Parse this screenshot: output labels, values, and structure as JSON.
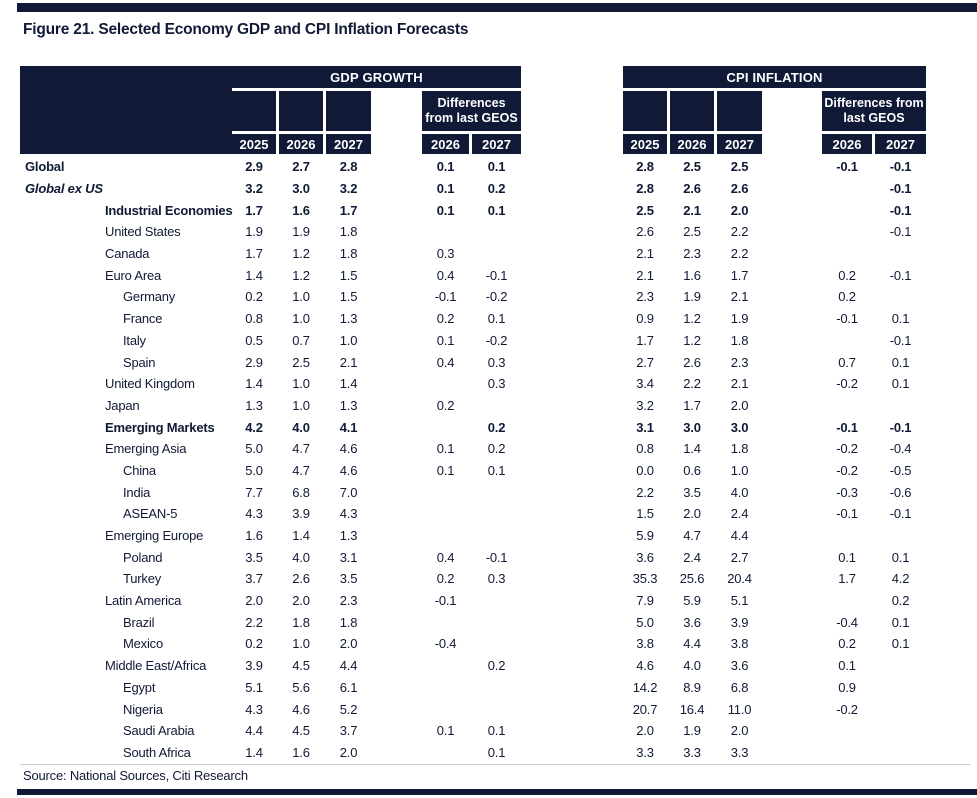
{
  "title": "Figure 21. Selected Economy GDP and CPI Inflation Forecasts",
  "source": "Source: National Sources, Citi Research",
  "colors": {
    "navy": "#101a36",
    "header_text": "#ffffff",
    "body_text": "#101a36",
    "divider": "#c9c9c9"
  },
  "table": {
    "groups": [
      {
        "label": "GDP GROWTH"
      },
      {
        "label": "CPI INFLATION"
      }
    ],
    "diff_header": "Differences from last GEOS",
    "years": [
      "2025",
      "2026",
      "2027"
    ],
    "diff_years": [
      "2026",
      "2027"
    ],
    "rows": [
      {
        "label": "Global",
        "indent": 0,
        "bold": true,
        "italic": false,
        "gdp": [
          "2.9",
          "2.7",
          "2.8"
        ],
        "gdp_diff": [
          "0.1",
          "0.1"
        ],
        "cpi": [
          "2.8",
          "2.5",
          "2.5"
        ],
        "cpi_diff": [
          "-0.1",
          "-0.1"
        ]
      },
      {
        "label": "Global ex US",
        "indent": 0,
        "bold": true,
        "italic": true,
        "gdp": [
          "3.2",
          "3.0",
          "3.2"
        ],
        "gdp_diff": [
          "0.1",
          "0.2"
        ],
        "cpi": [
          "2.8",
          "2.6",
          "2.6"
        ],
        "cpi_diff": [
          "",
          "-0.1"
        ]
      },
      {
        "label": "Industrial Economies",
        "indent": 1,
        "bold": true,
        "italic": false,
        "gdp": [
          "1.7",
          "1.6",
          "1.7"
        ],
        "gdp_diff": [
          "0.1",
          "0.1"
        ],
        "cpi": [
          "2.5",
          "2.1",
          "2.0"
        ],
        "cpi_diff": [
          "",
          "-0.1"
        ]
      },
      {
        "label": "United States",
        "indent": 1,
        "bold": false,
        "italic": false,
        "gdp": [
          "1.9",
          "1.9",
          "1.8"
        ],
        "gdp_diff": [
          "",
          ""
        ],
        "cpi": [
          "2.6",
          "2.5",
          "2.2"
        ],
        "cpi_diff": [
          "",
          "-0.1"
        ]
      },
      {
        "label": "Canada",
        "indent": 1,
        "bold": false,
        "italic": false,
        "gdp": [
          "1.7",
          "1.2",
          "1.8"
        ],
        "gdp_diff": [
          "0.3",
          ""
        ],
        "cpi": [
          "2.1",
          "2.3",
          "2.2"
        ],
        "cpi_diff": [
          "",
          ""
        ]
      },
      {
        "label": "Euro Area",
        "indent": 1,
        "bold": false,
        "italic": false,
        "gdp": [
          "1.4",
          "1.2",
          "1.5"
        ],
        "gdp_diff": [
          "0.4",
          "-0.1"
        ],
        "cpi": [
          "2.1",
          "1.6",
          "1.7"
        ],
        "cpi_diff": [
          "0.2",
          "-0.1"
        ]
      },
      {
        "label": "Germany",
        "indent": 2,
        "bold": false,
        "italic": false,
        "gdp": [
          "0.2",
          "1.0",
          "1.5"
        ],
        "gdp_diff": [
          "-0.1",
          "-0.2"
        ],
        "cpi": [
          "2.3",
          "1.9",
          "2.1"
        ],
        "cpi_diff": [
          "0.2",
          ""
        ]
      },
      {
        "label": "France",
        "indent": 2,
        "bold": false,
        "italic": false,
        "gdp": [
          "0.8",
          "1.0",
          "1.3"
        ],
        "gdp_diff": [
          "0.2",
          "0.1"
        ],
        "cpi": [
          "0.9",
          "1.2",
          "1.9"
        ],
        "cpi_diff": [
          "-0.1",
          "0.1"
        ]
      },
      {
        "label": "Italy",
        "indent": 2,
        "bold": false,
        "italic": false,
        "gdp": [
          "0.5",
          "0.7",
          "1.0"
        ],
        "gdp_diff": [
          "0.1",
          "-0.2"
        ],
        "cpi": [
          "1.7",
          "1.2",
          "1.8"
        ],
        "cpi_diff": [
          "",
          "-0.1"
        ]
      },
      {
        "label": "Spain",
        "indent": 2,
        "bold": false,
        "italic": false,
        "gdp": [
          "2.9",
          "2.5",
          "2.1"
        ],
        "gdp_diff": [
          "0.4",
          "0.3"
        ],
        "cpi": [
          "2.7",
          "2.6",
          "2.3"
        ],
        "cpi_diff": [
          "0.7",
          "0.1"
        ]
      },
      {
        "label": "United Kingdom",
        "indent": 1,
        "bold": false,
        "italic": false,
        "gdp": [
          "1.4",
          "1.0",
          "1.4"
        ],
        "gdp_diff": [
          "",
          "0.3"
        ],
        "cpi": [
          "3.4",
          "2.2",
          "2.1"
        ],
        "cpi_diff": [
          "-0.2",
          "0.1"
        ]
      },
      {
        "label": "Japan",
        "indent": 1,
        "bold": false,
        "italic": false,
        "gdp": [
          "1.3",
          "1.0",
          "1.3"
        ],
        "gdp_diff": [
          "0.2",
          ""
        ],
        "cpi": [
          "3.2",
          "1.7",
          "2.0"
        ],
        "cpi_diff": [
          "",
          ""
        ]
      },
      {
        "label": "Emerging Markets",
        "indent": 1,
        "bold": true,
        "italic": false,
        "gdp": [
          "4.2",
          "4.0",
          "4.1"
        ],
        "gdp_diff": [
          "",
          "0.2"
        ],
        "cpi": [
          "3.1",
          "3.0",
          "3.0"
        ],
        "cpi_diff": [
          "-0.1",
          "-0.1"
        ]
      },
      {
        "label": "Emerging Asia",
        "indent": 1,
        "bold": false,
        "italic": false,
        "gdp": [
          "5.0",
          "4.7",
          "4.6"
        ],
        "gdp_diff": [
          "0.1",
          "0.2"
        ],
        "cpi": [
          "0.8",
          "1.4",
          "1.8"
        ],
        "cpi_diff": [
          "-0.2",
          "-0.4"
        ]
      },
      {
        "label": "China",
        "indent": 2,
        "bold": false,
        "italic": false,
        "gdp": [
          "5.0",
          "4.7",
          "4.6"
        ],
        "gdp_diff": [
          "0.1",
          "0.1"
        ],
        "cpi": [
          "0.0",
          "0.6",
          "1.0"
        ],
        "cpi_diff": [
          "-0.2",
          "-0.5"
        ]
      },
      {
        "label": "India",
        "indent": 2,
        "bold": false,
        "italic": false,
        "gdp": [
          "7.7",
          "6.8",
          "7.0"
        ],
        "gdp_diff": [
          "",
          ""
        ],
        "cpi": [
          "2.2",
          "3.5",
          "4.0"
        ],
        "cpi_diff": [
          "-0.3",
          "-0.6"
        ]
      },
      {
        "label": "ASEAN-5",
        "indent": 2,
        "bold": false,
        "italic": false,
        "gdp": [
          "4.3",
          "3.9",
          "4.3"
        ],
        "gdp_diff": [
          "",
          ""
        ],
        "cpi": [
          "1.5",
          "2.0",
          "2.4"
        ],
        "cpi_diff": [
          "-0.1",
          "-0.1"
        ]
      },
      {
        "label": "Emerging Europe",
        "indent": 1,
        "bold": false,
        "italic": false,
        "gdp": [
          "1.6",
          "1.4",
          "1.3"
        ],
        "gdp_diff": [
          "",
          ""
        ],
        "cpi": [
          "5.9",
          "4.7",
          "4.4"
        ],
        "cpi_diff": [
          "",
          ""
        ]
      },
      {
        "label": "Poland",
        "indent": 2,
        "bold": false,
        "italic": false,
        "gdp": [
          "3.5",
          "4.0",
          "3.1"
        ],
        "gdp_diff": [
          "0.4",
          "-0.1"
        ],
        "cpi": [
          "3.6",
          "2.4",
          "2.7"
        ],
        "cpi_diff": [
          "0.1",
          "0.1"
        ]
      },
      {
        "label": "Turkey",
        "indent": 2,
        "bold": false,
        "italic": false,
        "gdp": [
          "3.7",
          "2.6",
          "3.5"
        ],
        "gdp_diff": [
          "0.2",
          "0.3"
        ],
        "cpi": [
          "35.3",
          "25.6",
          "20.4"
        ],
        "cpi_diff": [
          "1.7",
          "4.2"
        ]
      },
      {
        "label": "Latin America",
        "indent": 1,
        "bold": false,
        "italic": false,
        "gdp": [
          "2.0",
          "2.0",
          "2.3"
        ],
        "gdp_diff": [
          "-0.1",
          ""
        ],
        "cpi": [
          "7.9",
          "5.9",
          "5.1"
        ],
        "cpi_diff": [
          "",
          "0.2"
        ]
      },
      {
        "label": "Brazil",
        "indent": 2,
        "bold": false,
        "italic": false,
        "gdp": [
          "2.2",
          "1.8",
          "1.8"
        ],
        "gdp_diff": [
          "",
          ""
        ],
        "cpi": [
          "5.0",
          "3.6",
          "3.9"
        ],
        "cpi_diff": [
          "-0.4",
          "0.1"
        ]
      },
      {
        "label": "Mexico",
        "indent": 2,
        "bold": false,
        "italic": false,
        "gdp": [
          "0.2",
          "1.0",
          "2.0"
        ],
        "gdp_diff": [
          "-0.4",
          ""
        ],
        "cpi": [
          "3.8",
          "4.4",
          "3.8"
        ],
        "cpi_diff": [
          "0.2",
          "0.1"
        ]
      },
      {
        "label": "Middle East/Africa",
        "indent": 1,
        "bold": false,
        "italic": false,
        "gdp": [
          "3.9",
          "4.5",
          "4.4"
        ],
        "gdp_diff": [
          "",
          "0.2"
        ],
        "cpi": [
          "4.6",
          "4.0",
          "3.6"
        ],
        "cpi_diff": [
          "0.1",
          ""
        ]
      },
      {
        "label": "Egypt",
        "indent": 2,
        "bold": false,
        "italic": false,
        "gdp": [
          "5.1",
          "5.6",
          "6.1"
        ],
        "gdp_diff": [
          "",
          ""
        ],
        "cpi": [
          "14.2",
          "8.9",
          "6.8"
        ],
        "cpi_diff": [
          "0.9",
          ""
        ]
      },
      {
        "label": "Nigeria",
        "indent": 2,
        "bold": false,
        "italic": false,
        "gdp": [
          "4.3",
          "4.6",
          "5.2"
        ],
        "gdp_diff": [
          "",
          ""
        ],
        "cpi": [
          "20.7",
          "16.4",
          "11.0"
        ],
        "cpi_diff": [
          "-0.2",
          ""
        ]
      },
      {
        "label": "Saudi Arabia",
        "indent": 2,
        "bold": false,
        "italic": false,
        "gdp": [
          "4.4",
          "4.5",
          "3.7"
        ],
        "gdp_diff": [
          "0.1",
          "0.1"
        ],
        "cpi": [
          "2.0",
          "1.9",
          "2.0"
        ],
        "cpi_diff": [
          "",
          ""
        ]
      },
      {
        "label": "South Africa",
        "indent": 2,
        "bold": false,
        "italic": false,
        "gdp": [
          "1.4",
          "1.6",
          "2.0"
        ],
        "gdp_diff": [
          "",
          "0.1"
        ],
        "cpi": [
          "3.3",
          "3.3",
          "3.3"
        ],
        "cpi_diff": [
          "",
          ""
        ]
      }
    ]
  }
}
